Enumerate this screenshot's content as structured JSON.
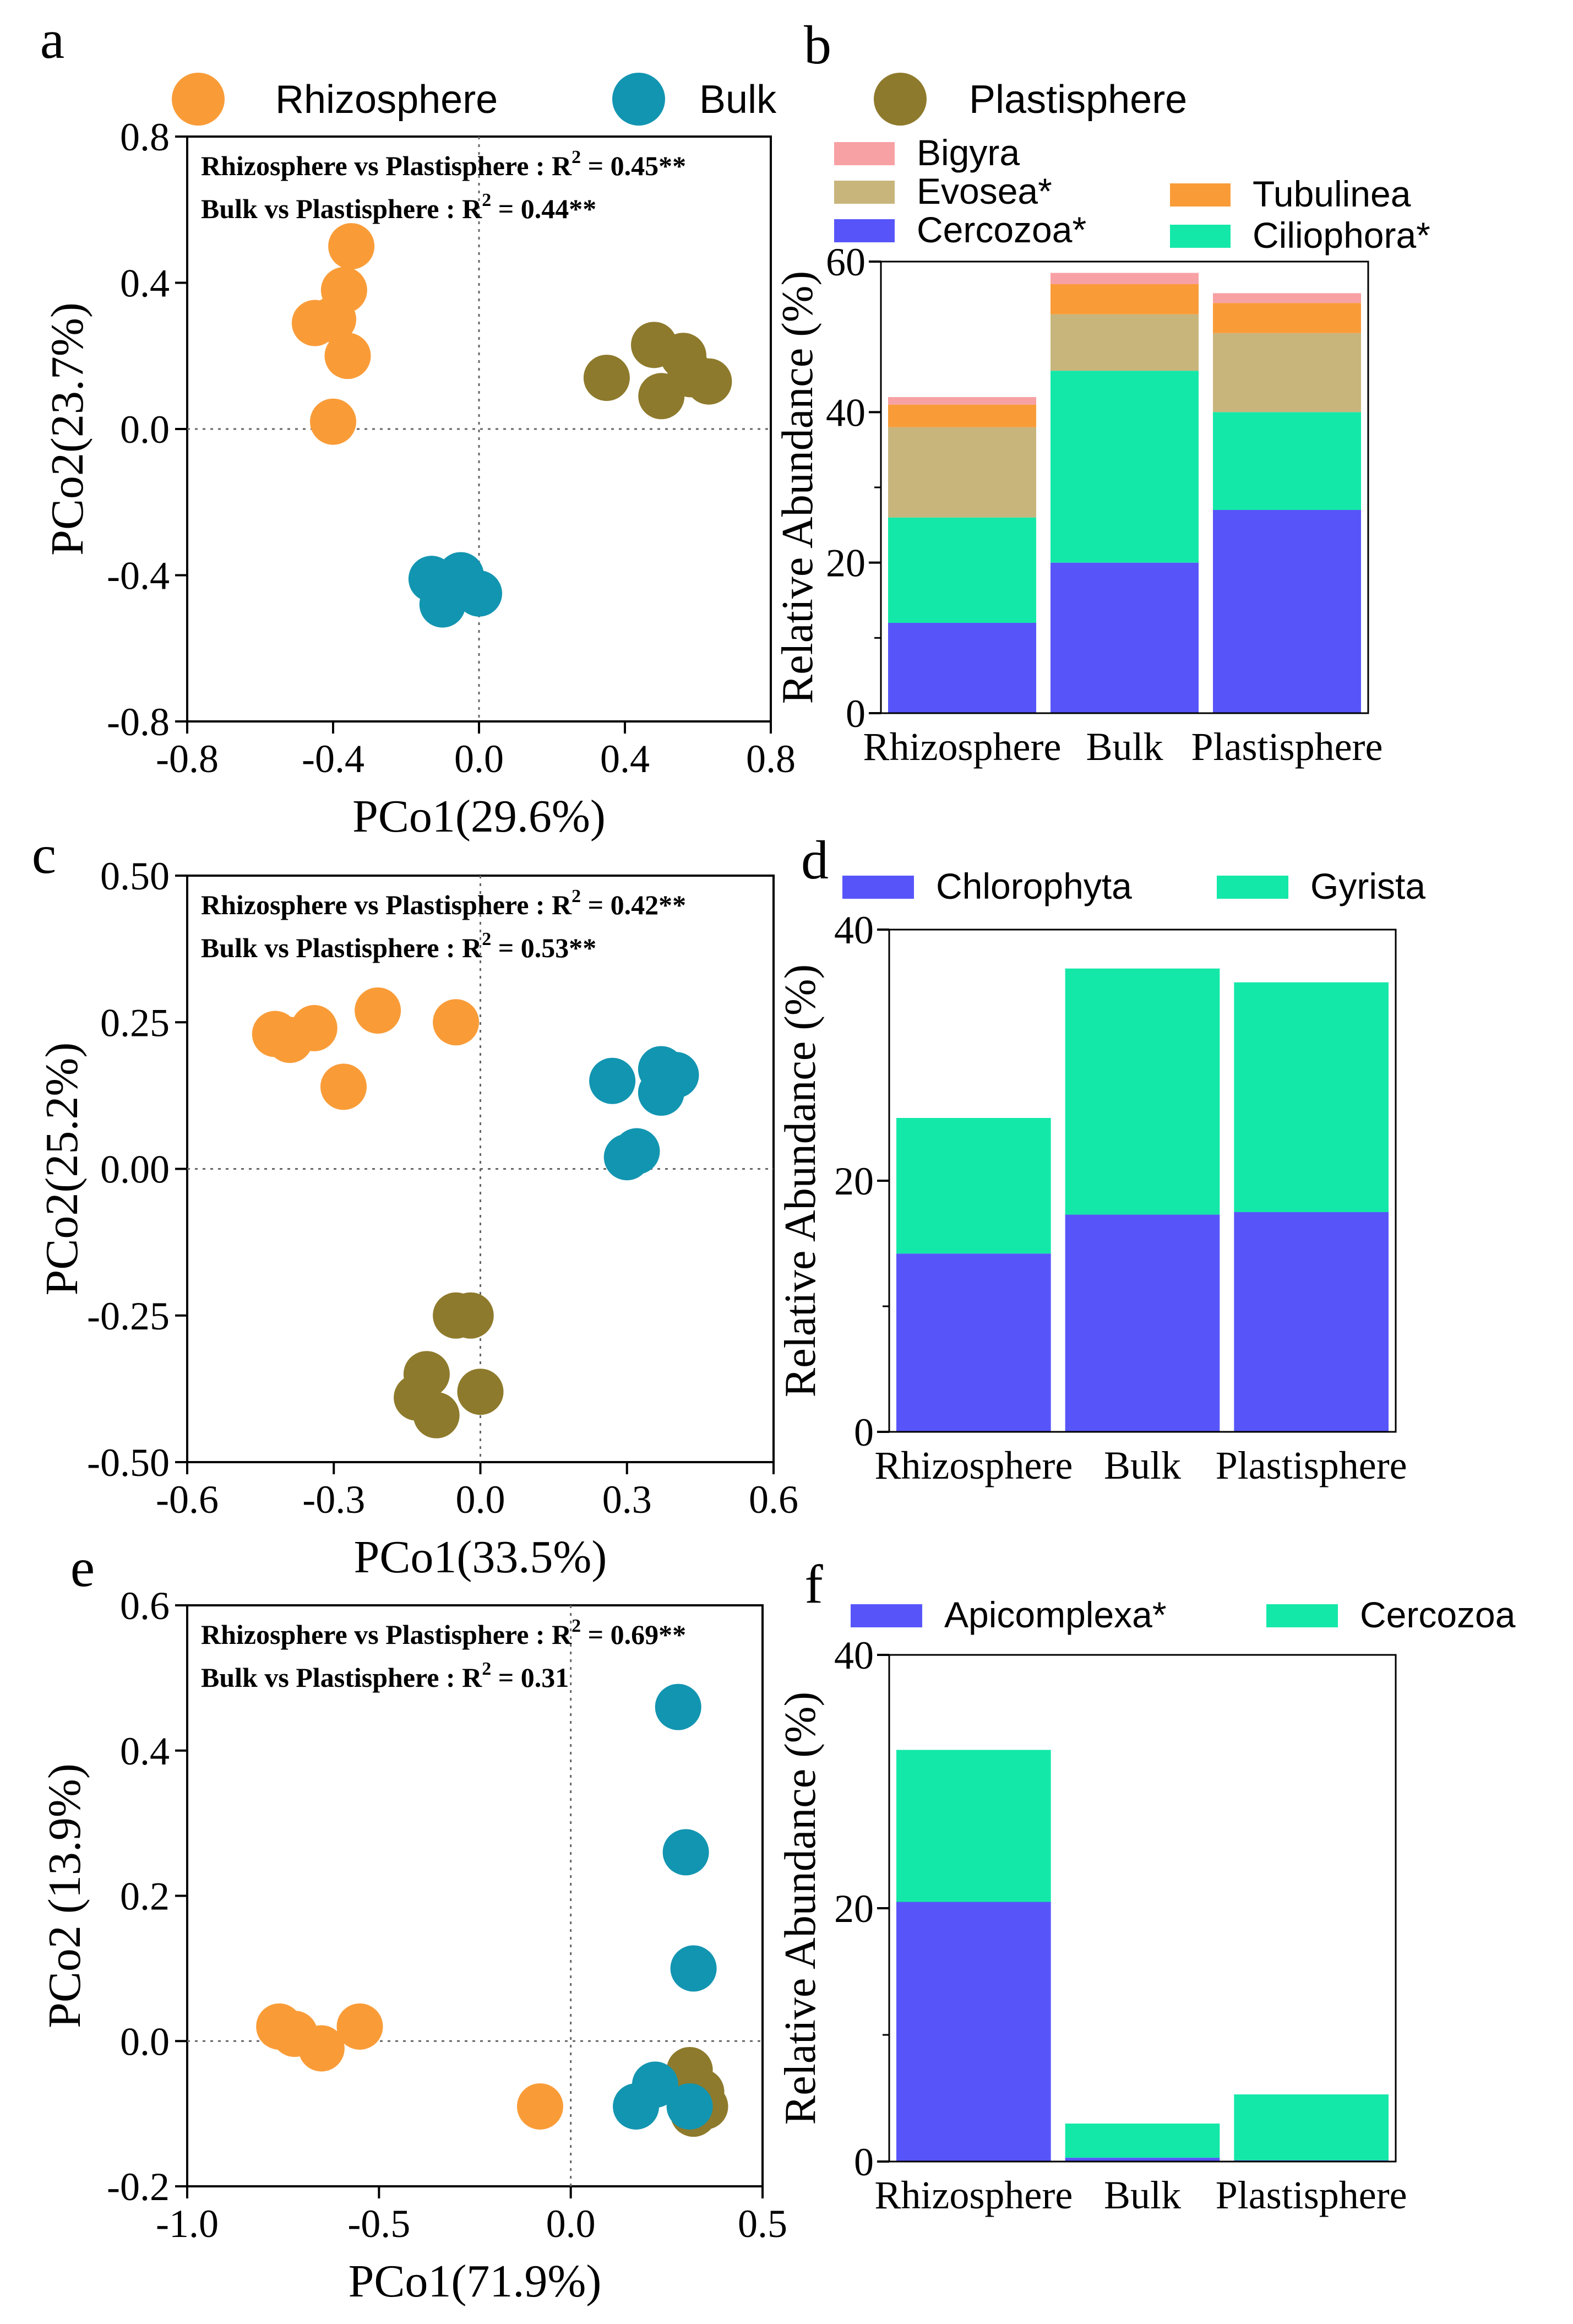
{
  "colors": {
    "rhizosphere": "#F99C38",
    "bulk": "#1295B1",
    "plastisphere": "#8E7A2C",
    "bigyra": "#F8A1A4",
    "evosea": "#C8B57C",
    "tubulinea": "#F99C38",
    "cercozoa": "#5755F9",
    "ciliophora": "#14E8A8",
    "chlorophyta": "#5755F9",
    "gyrista": "#14E8A8",
    "apicomplexa": "#5755F9",
    "cercozoa_f": "#14E8A8"
  },
  "panel_labels": [
    "a",
    "b",
    "c",
    "d",
    "e",
    "f"
  ],
  "group_legend": [
    "Rhizosphere",
    "Bulk",
    "Plastisphere"
  ],
  "chart_data": [
    {
      "id": "a",
      "type": "scatter",
      "xlabel": "PCo1(29.6%)",
      "ylabel": "PCo2(23.7%)",
      "xlim": [
        -0.8,
        0.8
      ],
      "ylim": [
        -0.8,
        0.8
      ],
      "xticks": [
        "-0.8",
        "-0.4",
        "0.0",
        "0.4",
        "0.8"
      ],
      "yticks": [
        "-0.8",
        "-0.4",
        "0.0",
        "0.4",
        "0.8"
      ],
      "annotation_lines": [
        {
          "prefix": "Rhizosphere vs Plastisphere",
          "sep": " : R",
          "sup": "2",
          "value": " = 0.45**"
        },
        {
          "prefix": "Bulk vs Plastisphere",
          "sep": " : R",
          "sup": "2",
          "value": " = 0.44**"
        }
      ],
      "series": [
        {
          "name": "Rhizosphere",
          "points": [
            [
              -0.35,
              0.5
            ],
            [
              -0.37,
              0.38
            ],
            [
              -0.45,
              0.29
            ],
            [
              -0.4,
              0.3
            ],
            [
              -0.36,
              0.2
            ],
            [
              -0.4,
              0.02
            ]
          ]
        },
        {
          "name": "Bulk",
          "points": [
            [
              -0.13,
              -0.41
            ],
            [
              -0.05,
              -0.4
            ],
            [
              -0.08,
              -0.43
            ],
            [
              -0.1,
              -0.48
            ],
            [
              0.0,
              -0.45
            ]
          ]
        },
        {
          "name": "Plastisphere",
          "points": [
            [
              0.48,
              0.23
            ],
            [
              0.56,
              0.2
            ],
            [
              0.35,
              0.14
            ],
            [
              0.63,
              0.13
            ],
            [
              0.5,
              0.09
            ],
            [
              0.58,
              0.15
            ]
          ]
        }
      ]
    },
    {
      "id": "b",
      "type": "bar",
      "stacked": true,
      "ylabel": "Relative Abundance (%)",
      "ylim": [
        0,
        60
      ],
      "yticks": [
        "0",
        "20",
        "40",
        "60"
      ],
      "categories": [
        "Rhizosphere",
        "Bulk",
        "Plastisphere"
      ],
      "legend": [
        "Bigyra",
        "Evosea*",
        "Cercozoa*",
        "Tubulinea",
        "Ciliophora*"
      ],
      "series": [
        {
          "name": "Cercozoa*",
          "color_key": "cercozoa",
          "values": [
            12,
            20,
            27
          ]
        },
        {
          "name": "Ciliophora*",
          "color_key": "ciliophora",
          "values": [
            14,
            25.5,
            13
          ]
        },
        {
          "name": "Evosea*",
          "color_key": "evosea",
          "values": [
            12,
            7.5,
            10.5
          ]
        },
        {
          "name": "Tubulinea",
          "color_key": "tubulinea",
          "values": [
            3,
            4,
            4
          ]
        },
        {
          "name": "Bigyra",
          "color_key": "bigyra",
          "values": [
            1,
            1.5,
            1.3
          ]
        }
      ]
    },
    {
      "id": "c",
      "type": "scatter",
      "xlabel": "PCo1(33.5%)",
      "ylabel": "PCo2(25.2%)",
      "xlim": [
        -0.6,
        0.6
      ],
      "ylim": [
        -0.5,
        0.5
      ],
      "xticks": [
        "-0.6",
        "-0.3",
        "0.0",
        "0.3",
        "0.6"
      ],
      "yticks": [
        "-0.50",
        "-0.25",
        "0.00",
        "0.25",
        "0.50"
      ],
      "annotation_lines": [
        {
          "prefix": "Rhizosphere vs Plastisphere",
          "sep": " : R",
          "sup": "2",
          "value": " = 0.42**"
        },
        {
          "prefix": "Bulk vs Plastisphere",
          "sep": " : R",
          "sup": "2",
          "value": " = 0.53**"
        }
      ],
      "series": [
        {
          "name": "Rhizosphere",
          "points": [
            [
              -0.42,
              0.23
            ],
            [
              -0.39,
              0.22
            ],
            [
              -0.34,
              0.24
            ],
            [
              -0.21,
              0.27
            ],
            [
              -0.05,
              0.25
            ],
            [
              -0.28,
              0.14
            ]
          ]
        },
        {
          "name": "Bulk",
          "points": [
            [
              0.27,
              0.15
            ],
            [
              0.37,
              0.17
            ],
            [
              0.4,
              0.16
            ],
            [
              0.37,
              0.13
            ],
            [
              0.3,
              0.02
            ],
            [
              0.32,
              0.03
            ]
          ]
        },
        {
          "name": "Plastisphere",
          "points": [
            [
              -0.05,
              -0.25
            ],
            [
              -0.02,
              -0.25
            ],
            [
              -0.11,
              -0.35
            ],
            [
              -0.13,
              -0.39
            ],
            [
              -0.09,
              -0.42
            ],
            [
              0.0,
              -0.38
            ]
          ]
        }
      ]
    },
    {
      "id": "d",
      "type": "bar",
      "stacked": true,
      "ylabel": "Relative Abundance (%)",
      "ylim": [
        0,
        40
      ],
      "yticks": [
        "0",
        "20",
        "40"
      ],
      "categories": [
        "Rhizosphere",
        "Bulk",
        "Plastisphere"
      ],
      "legend": [
        "Chlorophyta",
        "Gyrista"
      ],
      "series": [
        {
          "name": "Chlorophyta",
          "color_key": "chlorophyta",
          "values": [
            14.2,
            17.3,
            17.5
          ]
        },
        {
          "name": "Gyrista",
          "color_key": "gyrista",
          "values": [
            10.8,
            19.6,
            18.3
          ]
        }
      ]
    },
    {
      "id": "e",
      "type": "scatter",
      "xlabel": "PCo1(71.9%)",
      "ylabel": "PCo2 (13.9%)",
      "xlim": [
        -1.0,
        0.5
      ],
      "ylim": [
        -0.2,
        0.6
      ],
      "xticks": [
        "-1.0",
        "-0.5",
        "0.0",
        "0.5"
      ],
      "yticks": [
        "-0.2",
        "0.0",
        "0.2",
        "0.4",
        "0.6"
      ],
      "annotation_lines": [
        {
          "prefix": "Rhizosphere vs Plastisphere",
          "sep": " : R",
          "sup": "2",
          "value": " = 0.69**"
        },
        {
          "prefix": "Bulk vs Plastisphere",
          "sep": " : R",
          "sup": "2",
          "value": " = 0.31"
        }
      ],
      "series": [
        {
          "name": "Rhizosphere",
          "points": [
            [
              -0.76,
              0.02
            ],
            [
              -0.72,
              0.01
            ],
            [
              -0.65,
              -0.01
            ],
            [
              -0.55,
              0.02
            ],
            [
              -0.08,
              -0.09
            ]
          ]
        },
        {
          "name": "Plastisphere",
          "points": [
            [
              0.31,
              -0.04
            ],
            [
              0.34,
              -0.07
            ],
            [
              0.32,
              -0.1
            ],
            [
              0.35,
              -0.09
            ]
          ]
        },
        {
          "name": "Bulk",
          "points": [
            [
              0.28,
              0.46
            ],
            [
              0.3,
              0.26
            ],
            [
              0.32,
              0.1
            ],
            [
              0.22,
              -0.06
            ],
            [
              0.17,
              -0.09
            ],
            [
              0.31,
              -0.09
            ]
          ]
        }
      ]
    },
    {
      "id": "f",
      "type": "bar",
      "stacked": true,
      "ylabel": "Relative Abundance (%)",
      "ylim": [
        0,
        40
      ],
      "yticks": [
        "0",
        "20",
        "40"
      ],
      "categories": [
        "Rhizosphere",
        "Bulk",
        "Plastisphere"
      ],
      "legend": [
        "Apicomplexa*",
        "Cercozoa"
      ],
      "series": [
        {
          "name": "Apicomplexa*",
          "color_key": "apicomplexa",
          "values": [
            20.5,
            0.3,
            0.1
          ]
        },
        {
          "name": "Cercozoa",
          "color_key": "cercozoa_f",
          "values": [
            12,
            2.7,
            5.2
          ]
        }
      ]
    }
  ]
}
